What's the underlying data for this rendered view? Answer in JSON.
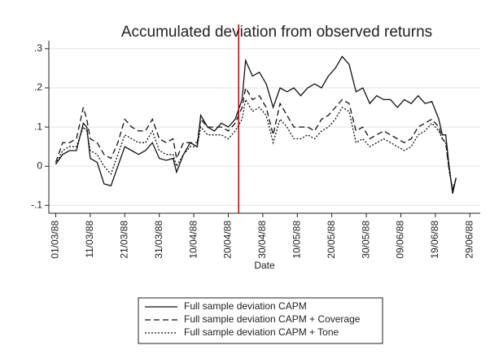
{
  "chart_data": {
    "type": "line",
    "title": "Accumulated deviation from observed returns",
    "x_label": "Date",
    "x": [
      "01/03/88",
      "03/03/88",
      "05/03/88",
      "07/03/88",
      "09/03/88",
      "10/03/88",
      "11/03/88",
      "13/03/88",
      "15/03/88",
      "17/03/88",
      "19/03/88",
      "21/03/88",
      "23/03/88",
      "25/03/88",
      "27/03/88",
      "29/03/88",
      "31/03/88",
      "02/04/88",
      "04/04/88",
      "05/04/88",
      "07/04/88",
      "09/04/88",
      "11/04/88",
      "12/04/88",
      "14/04/88",
      "16/04/88",
      "18/04/88",
      "20/04/88",
      "22/04/88",
      "24/04/88",
      "25/04/88",
      "27/04/88",
      "29/04/88",
      "01/05/88",
      "03/05/88",
      "05/05/88",
      "07/05/88",
      "09/05/88",
      "11/05/88",
      "13/05/88",
      "15/05/88",
      "17/05/88",
      "19/05/88",
      "21/05/88",
      "23/05/88",
      "25/05/88",
      "27/05/88",
      "29/05/88",
      "31/05/88",
      "02/06/88",
      "04/06/88",
      "06/06/88",
      "08/06/88",
      "10/06/88",
      "12/06/88",
      "14/06/88",
      "16/06/88",
      "18/06/88",
      "20/06/88",
      "21/06/88",
      "22/06/88",
      "23/06/88",
      "24/06/88",
      "25/06/88"
    ],
    "series": [
      {
        "name": "Full sample deviation CAPM",
        "color": "#111111",
        "dash": "solid",
        "values": [
          0.005,
          0.03,
          0.04,
          0.04,
          0.11,
          0.1,
          0.02,
          0.01,
          -0.045,
          -0.05,
          0.0,
          0.05,
          0.04,
          0.03,
          0.04,
          0.06,
          0.02,
          0.015,
          0.02,
          -0.015,
          0.03,
          0.06,
          0.05,
          0.13,
          0.1,
          0.09,
          0.11,
          0.1,
          0.12,
          0.17,
          0.27,
          0.23,
          0.24,
          0.21,
          0.15,
          0.2,
          0.19,
          0.2,
          0.18,
          0.2,
          0.21,
          0.2,
          0.23,
          0.25,
          0.28,
          0.26,
          0.19,
          0.2,
          0.16,
          0.18,
          0.17,
          0.17,
          0.15,
          0.17,
          0.16,
          0.18,
          0.16,
          0.165,
          0.12,
          0.08,
          0.08,
          0.0,
          -0.07,
          -0.03
        ]
      },
      {
        "name": "Full sample deviation CAPM + Coverage",
        "color": "#111111",
        "dash": "dashed",
        "values": [
          0.01,
          0.06,
          0.06,
          0.07,
          0.15,
          0.12,
          0.07,
          0.06,
          0.03,
          0.02,
          0.06,
          0.12,
          0.1,
          0.09,
          0.09,
          0.12,
          0.07,
          0.06,
          0.07,
          0.02,
          0.06,
          0.06,
          0.06,
          0.12,
          0.1,
          0.1,
          0.1,
          0.09,
          0.11,
          0.15,
          0.2,
          0.17,
          0.18,
          0.15,
          0.08,
          0.16,
          0.13,
          0.1,
          0.1,
          0.1,
          0.09,
          0.12,
          0.13,
          0.15,
          0.17,
          0.16,
          0.09,
          0.1,
          0.07,
          0.08,
          0.09,
          0.08,
          0.07,
          0.06,
          0.07,
          0.1,
          0.11,
          0.12,
          0.1,
          0.07,
          0.06,
          -0.01,
          -0.06,
          -0.03
        ]
      },
      {
        "name": "Full sample deviation CAPM + Tone",
        "color": "#111111",
        "dash": "dotted",
        "values": [
          0.005,
          0.04,
          0.05,
          0.05,
          0.1,
          0.09,
          0.04,
          0.03,
          0.0,
          -0.02,
          0.03,
          0.08,
          0.07,
          0.06,
          0.06,
          0.09,
          0.04,
          0.03,
          0.03,
          0.0,
          0.03,
          0.05,
          0.05,
          0.1,
          0.08,
          0.08,
          0.08,
          0.07,
          0.09,
          0.12,
          0.17,
          0.14,
          0.15,
          0.13,
          0.06,
          0.12,
          0.1,
          0.07,
          0.07,
          0.08,
          0.07,
          0.09,
          0.1,
          0.12,
          0.15,
          0.14,
          0.06,
          0.07,
          0.05,
          0.06,
          0.07,
          0.06,
          0.05,
          0.04,
          0.05,
          0.08,
          0.09,
          0.11,
          0.09,
          0.07,
          0.06,
          -0.01,
          -0.06,
          -0.03
        ]
      }
    ],
    "xlim": [
      "28/02/88",
      "02/07/88"
    ],
    "xticks": [
      "01/03/88",
      "11/03/88",
      "21/03/88",
      "31/03/88",
      "10/04/88",
      "20/04/88",
      "30/04/88",
      "10/05/88",
      "20/05/88",
      "30/05/88",
      "09/06/88",
      "19/06/88",
      "29/06/88"
    ],
    "ylim": [
      -0.12,
      0.31
    ],
    "yticks": [
      {
        "value": -0.1,
        "label": "-.1"
      },
      0,
      {
        "value": 0.1,
        "label": ".1"
      },
      {
        "value": 0.2,
        "label": ".2"
      },
      {
        "value": 0.3,
        "label": ".3"
      }
    ],
    "grid": true,
    "vline": {
      "x": "23/04/88",
      "color": "#c00000"
    },
    "legend": "bottom"
  }
}
